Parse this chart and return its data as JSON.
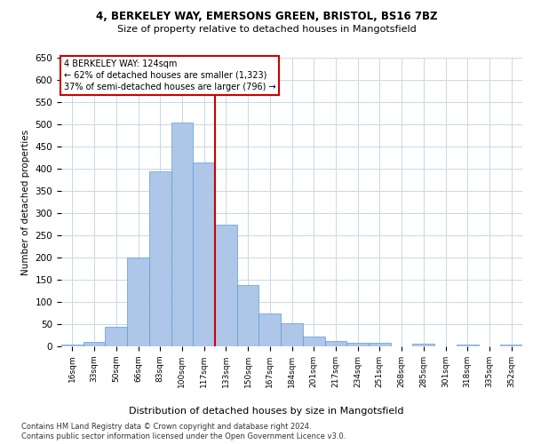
{
  "title1": "4, BERKELEY WAY, EMERSONS GREEN, BRISTOL, BS16 7BZ",
  "title2": "Size of property relative to detached houses in Mangotsfield",
  "xlabel": "Distribution of detached houses by size in Mangotsfield",
  "ylabel": "Number of detached properties",
  "bins": [
    "16sqm",
    "33sqm",
    "50sqm",
    "66sqm",
    "83sqm",
    "100sqm",
    "117sqm",
    "133sqm",
    "150sqm",
    "167sqm",
    "184sqm",
    "201sqm",
    "217sqm",
    "234sqm",
    "251sqm",
    "268sqm",
    "285sqm",
    "301sqm",
    "318sqm",
    "335sqm",
    "352sqm"
  ],
  "bar_heights": [
    5,
    10,
    45,
    200,
    395,
    505,
    415,
    275,
    138,
    75,
    52,
    22,
    12,
    8,
    8,
    0,
    6,
    0,
    5,
    0,
    4
  ],
  "bar_color": "#aec6e8",
  "bar_edge_color": "#5a9fd4",
  "background_color": "#ffffff",
  "grid_color": "#c8d8e8",
  "vline_x": 6.5,
  "vline_color": "#cc0000",
  "annotation_text": "4 BERKELEY WAY: 124sqm\n← 62% of detached houses are smaller (1,323)\n37% of semi-detached houses are larger (796) →",
  "annotation_box_color": "#ffffff",
  "annotation_box_edge": "#cc0000",
  "ylim": [
    0,
    650
  ],
  "yticks": [
    0,
    50,
    100,
    150,
    200,
    250,
    300,
    350,
    400,
    450,
    500,
    550,
    600,
    650
  ],
  "footnote1": "Contains HM Land Registry data © Crown copyright and database right 2024.",
  "footnote2": "Contains public sector information licensed under the Open Government Licence v3.0."
}
